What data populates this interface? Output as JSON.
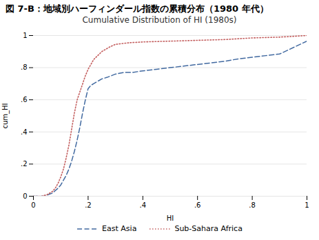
{
  "chart_data": {
    "type": "line",
    "title": "図  7-B：地域別ハーフィンダール指数の累積分布（1980 年代）",
    "subtitle": "Cumulative Distribution of HI (1980s)",
    "x_label": "HI",
    "y_label": "cum_HI",
    "xlim": [
      0,
      1
    ],
    "ylim": [
      0,
      1
    ],
    "xticks": [
      0,
      {
        "value": 0.2,
        "label": ".2"
      },
      {
        "value": 0.4,
        "label": ".4"
      },
      {
        "value": 0.6,
        "label": ".6"
      },
      {
        "value": 0.8,
        "label": ".8"
      },
      1
    ],
    "yticks": [
      0,
      {
        "value": 0.2,
        "label": ".2"
      },
      {
        "value": 0.4,
        "label": ".4"
      },
      {
        "value": 0.6,
        "label": ".6"
      },
      {
        "value": 0.8,
        "label": ".8"
      },
      1
    ],
    "grid": "y",
    "legend": "bottom",
    "series": [
      {
        "name": "East Asia",
        "color": "#4169a0",
        "line_style": "dashed",
        "x": [
          0.0,
          0.04,
          0.07,
          0.09,
          0.1,
          0.11,
          0.12,
          0.13,
          0.14,
          0.15,
          0.16,
          0.17,
          0.18,
          0.19,
          0.2,
          0.21,
          0.22,
          0.23,
          0.24,
          0.25,
          0.27,
          0.3,
          0.33,
          0.36,
          0.4,
          0.45,
          0.5,
          0.55,
          0.6,
          0.65,
          0.7,
          0.75,
          0.8,
          0.85,
          0.9,
          0.95,
          1.0
        ],
        "values": [
          0.0,
          0.0,
          0.02,
          0.05,
          0.07,
          0.1,
          0.13,
          0.17,
          0.22,
          0.28,
          0.35,
          0.43,
          0.52,
          0.6,
          0.67,
          0.69,
          0.7,
          0.71,
          0.72,
          0.73,
          0.74,
          0.76,
          0.77,
          0.77,
          0.78,
          0.79,
          0.8,
          0.81,
          0.82,
          0.83,
          0.84,
          0.855,
          0.865,
          0.875,
          0.885,
          0.925,
          0.965
        ]
      },
      {
        "name": "Sub-Sahara Africa",
        "color": "#c46060",
        "line_style": "dotted",
        "x": [
          0.0,
          0.03,
          0.05,
          0.07,
          0.08,
          0.09,
          0.1,
          0.11,
          0.12,
          0.13,
          0.14,
          0.15,
          0.16,
          0.17,
          0.18,
          0.19,
          0.2,
          0.22,
          0.25,
          0.28,
          0.3,
          0.35,
          0.4,
          0.5,
          0.6,
          0.7,
          0.8,
          0.9,
          0.95,
          1.0
        ],
        "values": [
          0.0,
          0.0,
          0.01,
          0.03,
          0.05,
          0.08,
          0.12,
          0.17,
          0.24,
          0.32,
          0.42,
          0.52,
          0.6,
          0.65,
          0.7,
          0.75,
          0.79,
          0.85,
          0.9,
          0.93,
          0.945,
          0.955,
          0.96,
          0.965,
          0.97,
          0.975,
          0.985,
          0.99,
          0.995,
          1.0
        ]
      }
    ]
  }
}
